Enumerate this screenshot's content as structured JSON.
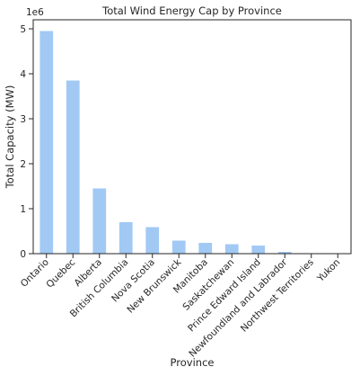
{
  "chart_data": {
    "type": "bar",
    "title": "Total Wind Energy Cap by Province",
    "xlabel": "Province",
    "ylabel": "Total Capacity (MW)",
    "y_offset_label": "1e6",
    "categories": [
      "Ontario",
      "Quebec",
      "Alberta",
      "British Columbia",
      "Nova Scotia",
      "New Brunswick",
      "Manitoba",
      "Saskatchewan",
      "Prince Edward Island",
      "Newfoundland and Labrador",
      "Northwest Territories",
      "Yukon"
    ],
    "values": [
      4950000,
      3850000,
      1450000,
      700000,
      590000,
      290000,
      240000,
      210000,
      180000,
      40000,
      8000,
      3000
    ],
    "ylim": [
      0,
      5200000
    ],
    "yticks": [
      0,
      1,
      2,
      3,
      4,
      5
    ],
    "grid": false,
    "bar_color": "#a1c9f4",
    "axis_color": "#262626"
  }
}
